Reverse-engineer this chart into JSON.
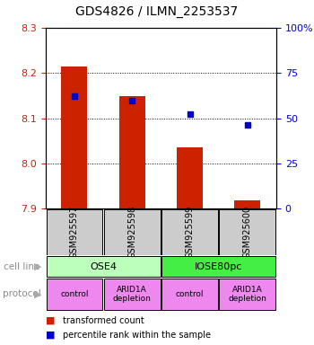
{
  "title": "GDS4826 / ILMN_2253537",
  "samples": [
    "GSM925597",
    "GSM925598",
    "GSM925599",
    "GSM925600"
  ],
  "bar_values": [
    8.215,
    8.148,
    8.035,
    7.918
  ],
  "percentile_values": [
    8.148,
    8.138,
    8.108,
    8.085
  ],
  "ylim_left": [
    7.9,
    8.3
  ],
  "ylim_right": [
    0,
    100
  ],
  "yticks_left": [
    7.9,
    8.0,
    8.1,
    8.2,
    8.3
  ],
  "yticks_right": [
    0,
    25,
    50,
    75,
    100
  ],
  "ytick_labels_right": [
    "0",
    "25",
    "50",
    "75",
    "100%"
  ],
  "bar_color": "#cc2200",
  "percentile_color": "#0000cc",
  "cell_line_groups": [
    {
      "label": "OSE4",
      "cols": [
        0,
        1
      ],
      "color": "#bbffbb"
    },
    {
      "label": "IOSE80pc",
      "cols": [
        2,
        3
      ],
      "color": "#44ee44"
    }
  ],
  "protocol_groups": [
    {
      "label": "control",
      "col": 0,
      "color": "#ee88ee"
    },
    {
      "label": "ARID1A\ndepletion",
      "col": 1,
      "color": "#ee88ee"
    },
    {
      "label": "control",
      "col": 2,
      "color": "#ee88ee"
    },
    {
      "label": "ARID1A\ndepletion",
      "col": 3,
      "color": "#ee88ee"
    }
  ],
  "cell_line_label": "cell line",
  "protocol_label": "protocol",
  "legend_red": "transformed count",
  "legend_blue": "percentile rank within the sample",
  "sample_box_color": "#cccccc",
  "bg_color": "#ffffff"
}
